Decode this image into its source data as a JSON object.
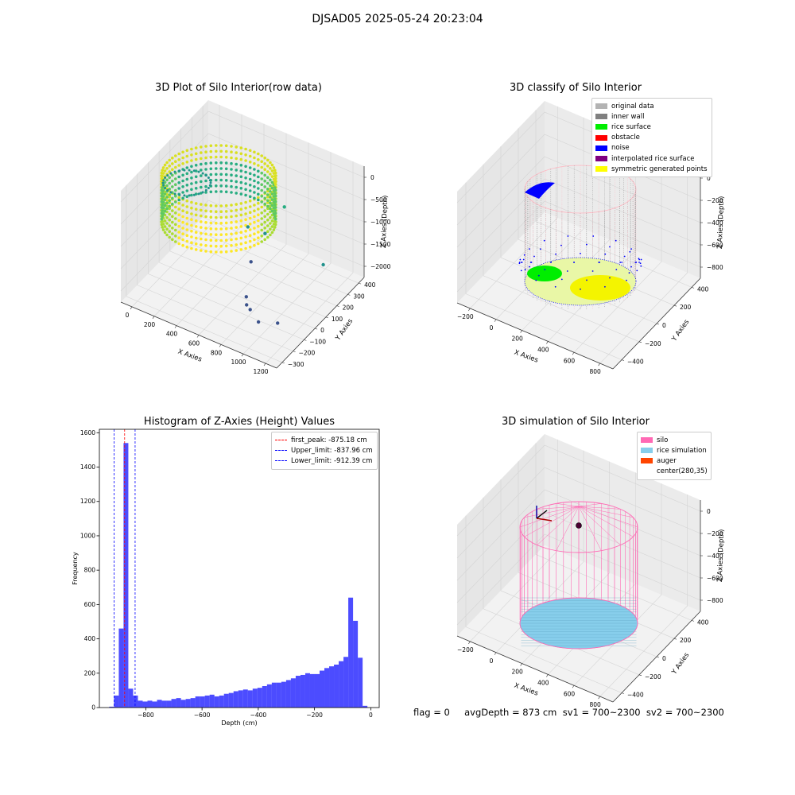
{
  "figure": {
    "suptitle": "DJSAD05 2025-05-24 20:23:04",
    "status_line": "flag = 0     avgDepth = 873 cm  sv1 = 700~2300  sv2 = 700~2300"
  },
  "chart_data": [
    {
      "type": "scatter",
      "projection": "3d",
      "title": "3D Plot of Silo Interior(row data)",
      "xlabel": "X Axies",
      "ylabel": "Y Axies",
      "zlabel": "Z Axies (Depth)",
      "x_ticks": [
        "0",
        "200",
        "400",
        "600",
        "800",
        "1000",
        "1200"
      ],
      "y_ticks": [
        "−300",
        "−200",
        "−100",
        "0",
        "100",
        "200",
        "300",
        "400"
      ],
      "z_ticks": [
        "−2000",
        "−1500",
        "−1000",
        "−500",
        "0"
      ],
      "xlim": [
        -100,
        1250
      ],
      "ylim": [
        -350,
        450
      ],
      "zlim": [
        -2600,
        100
      ],
      "colormap": "viridis",
      "outlier_points": [
        {
          "x": 720,
          "y": 280,
          "z": -1050
        },
        {
          "x": 1180,
          "y": 150,
          "z": -1550
        },
        {
          "x": 600,
          "y": 230,
          "z": -1700
        },
        {
          "x": 480,
          "y": 200,
          "z": -1600
        },
        {
          "x": 620,
          "y": 80,
          "z": -1950
        },
        {
          "x": 750,
          "y": -100,
          "z": -2150
        },
        {
          "x": 800,
          "y": -150,
          "z": -2150
        },
        {
          "x": 850,
          "y": -170,
          "z": -2150
        },
        {
          "x": 1050,
          "y": -130,
          "z": -2350
        },
        {
          "x": 950,
          "y": -200,
          "z": -2250
        }
      ]
    },
    {
      "type": "scatter",
      "projection": "3d",
      "title": "3D classify of Silo Interior",
      "xlabel": "X Axies",
      "ylabel": "Y Axies",
      "zlabel": "Z Axies (Depth)",
      "x_ticks": [
        "−200",
        "0",
        "200",
        "400",
        "600",
        "800"
      ],
      "y_ticks": [
        "−400",
        "−200",
        "0",
        "200",
        "400"
      ],
      "z_ticks": [
        "−800",
        "−600",
        "−400",
        "−200",
        "0"
      ],
      "legend": [
        {
          "label": "original data",
          "color": "#b3b3b3"
        },
        {
          "label": "inner wall",
          "color": "#808080"
        },
        {
          "label": "rice surface",
          "color": "#00ee00"
        },
        {
          "label": "obstacle",
          "color": "#ff0000"
        },
        {
          "label": "noise",
          "color": "#0000ff"
        },
        {
          "label": "interpolated rice surface",
          "color": "#800080"
        },
        {
          "label": "symmetric generated points",
          "color": "#ffff00"
        }
      ]
    },
    {
      "type": "bar",
      "title": "Histogram of Z-Axies (Height) Values",
      "xlabel": "Depth (cm)",
      "ylabel": "Frequency",
      "xlim": [
        -965,
        30
      ],
      "ylim": [
        0,
        1620
      ],
      "x_ticks": [
        -800,
        -600,
        -400,
        -200,
        0
      ],
      "y_ticks": [
        0,
        200,
        400,
        600,
        800,
        1000,
        1200,
        1400,
        1600
      ],
      "bar_color": "#0000ff",
      "bin_width": 17,
      "bin_starts": [
        -930,
        -913,
        -896,
        -879,
        -862,
        -845,
        -828,
        -811,
        -794,
        -777,
        -760,
        -743,
        -726,
        -709,
        -692,
        -675,
        -658,
        -641,
        -624,
        -607,
        -590,
        -573,
        -556,
        -539,
        -522,
        -505,
        -488,
        -471,
        -454,
        -437,
        -420,
        -403,
        -386,
        -369,
        -352,
        -335,
        -318,
        -301,
        -284,
        -267,
        -250,
        -233,
        -216,
        -199,
        -182,
        -165,
        -148,
        -131,
        -114,
        -97,
        -80,
        -63,
        -46,
        -29,
        -12
      ],
      "values": [
        5,
        70,
        460,
        1540,
        110,
        70,
        40,
        35,
        40,
        35,
        45,
        40,
        40,
        50,
        55,
        45,
        50,
        55,
        65,
        65,
        70,
        75,
        65,
        70,
        80,
        85,
        95,
        100,
        105,
        100,
        110,
        115,
        125,
        135,
        145,
        145,
        150,
        160,
        170,
        185,
        190,
        200,
        195,
        195,
        215,
        230,
        240,
        250,
        270,
        295,
        640,
        505,
        290,
        10,
        0
      ],
      "vlines": [
        {
          "label": "first_peak: -875.18 cm",
          "x": -875.18,
          "color": "#ff0000"
        },
        {
          "label": "Upper_limit: -837.96 cm",
          "x": -837.96,
          "color": "#0000ff"
        },
        {
          "label": "Lower_limit: -912.39 cm",
          "x": -912.39,
          "color": "#0000ff"
        }
      ]
    },
    {
      "type": "scatter",
      "projection": "3d",
      "title": "3D simulation of Silo Interior",
      "xlabel": "X Axies",
      "ylabel": "Y Axies",
      "zlabel": "Z Axies (Depth)",
      "x_ticks": [
        "−200",
        "0",
        "200",
        "400",
        "600",
        "800"
      ],
      "y_ticks": [
        "−400",
        "−200",
        "0",
        "200",
        "400"
      ],
      "z_ticks": [
        "−800",
        "−600",
        "−400",
        "−200",
        "0"
      ],
      "legend": [
        {
          "label": "silo",
          "color": "#ff69b4"
        },
        {
          "label": "rice simulation",
          "color": "#87ceeb"
        },
        {
          "label": "auger",
          "color": "#ff4500"
        },
        {
          "label": "center(280,35)",
          "color": ""
        }
      ]
    }
  ]
}
